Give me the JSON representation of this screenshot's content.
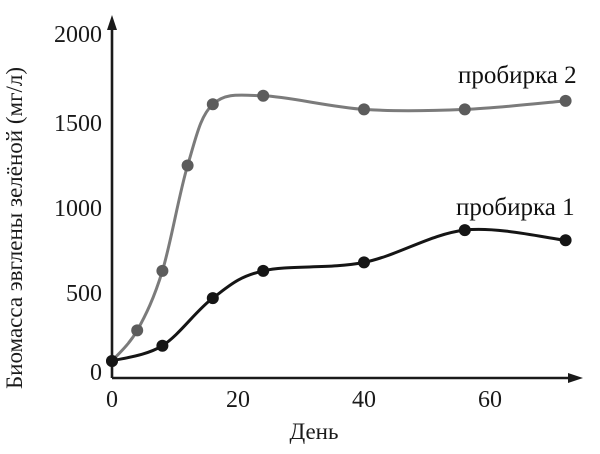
{
  "figure": {
    "background": "#ffffff",
    "axis_color": "#1a1a1a"
  },
  "chart_data": {
    "type": "line",
    "title": "",
    "xlabel": "День",
    "ylabel": "Биомасса эвглены зелёной (мг/л)",
    "xlim": [
      0,
      75
    ],
    "ylim": [
      0,
      2100
    ],
    "x_ticks": [
      0,
      20,
      40,
      60
    ],
    "y_ticks": [
      0,
      500,
      1000,
      1500,
      2000
    ],
    "grid": false,
    "legend_position": "inline-labels-right",
    "series": [
      {
        "name": "пробирка 1",
        "line_color": "#151515",
        "marker_color": "#151515",
        "x": [
          0,
          8,
          16,
          24,
          40,
          56,
          72
        ],
        "values": [
          100,
          190,
          470,
          630,
          680,
          870,
          810
        ]
      },
      {
        "name": "пробирка 2",
        "line_color": "#7b7b7b",
        "marker_color": "#5c5c5c",
        "x": [
          0,
          4,
          8,
          12,
          16,
          24,
          40,
          56,
          72
        ],
        "values": [
          100,
          280,
          630,
          1250,
          1610,
          1660,
          1580,
          1580,
          1630
        ]
      }
    ]
  }
}
